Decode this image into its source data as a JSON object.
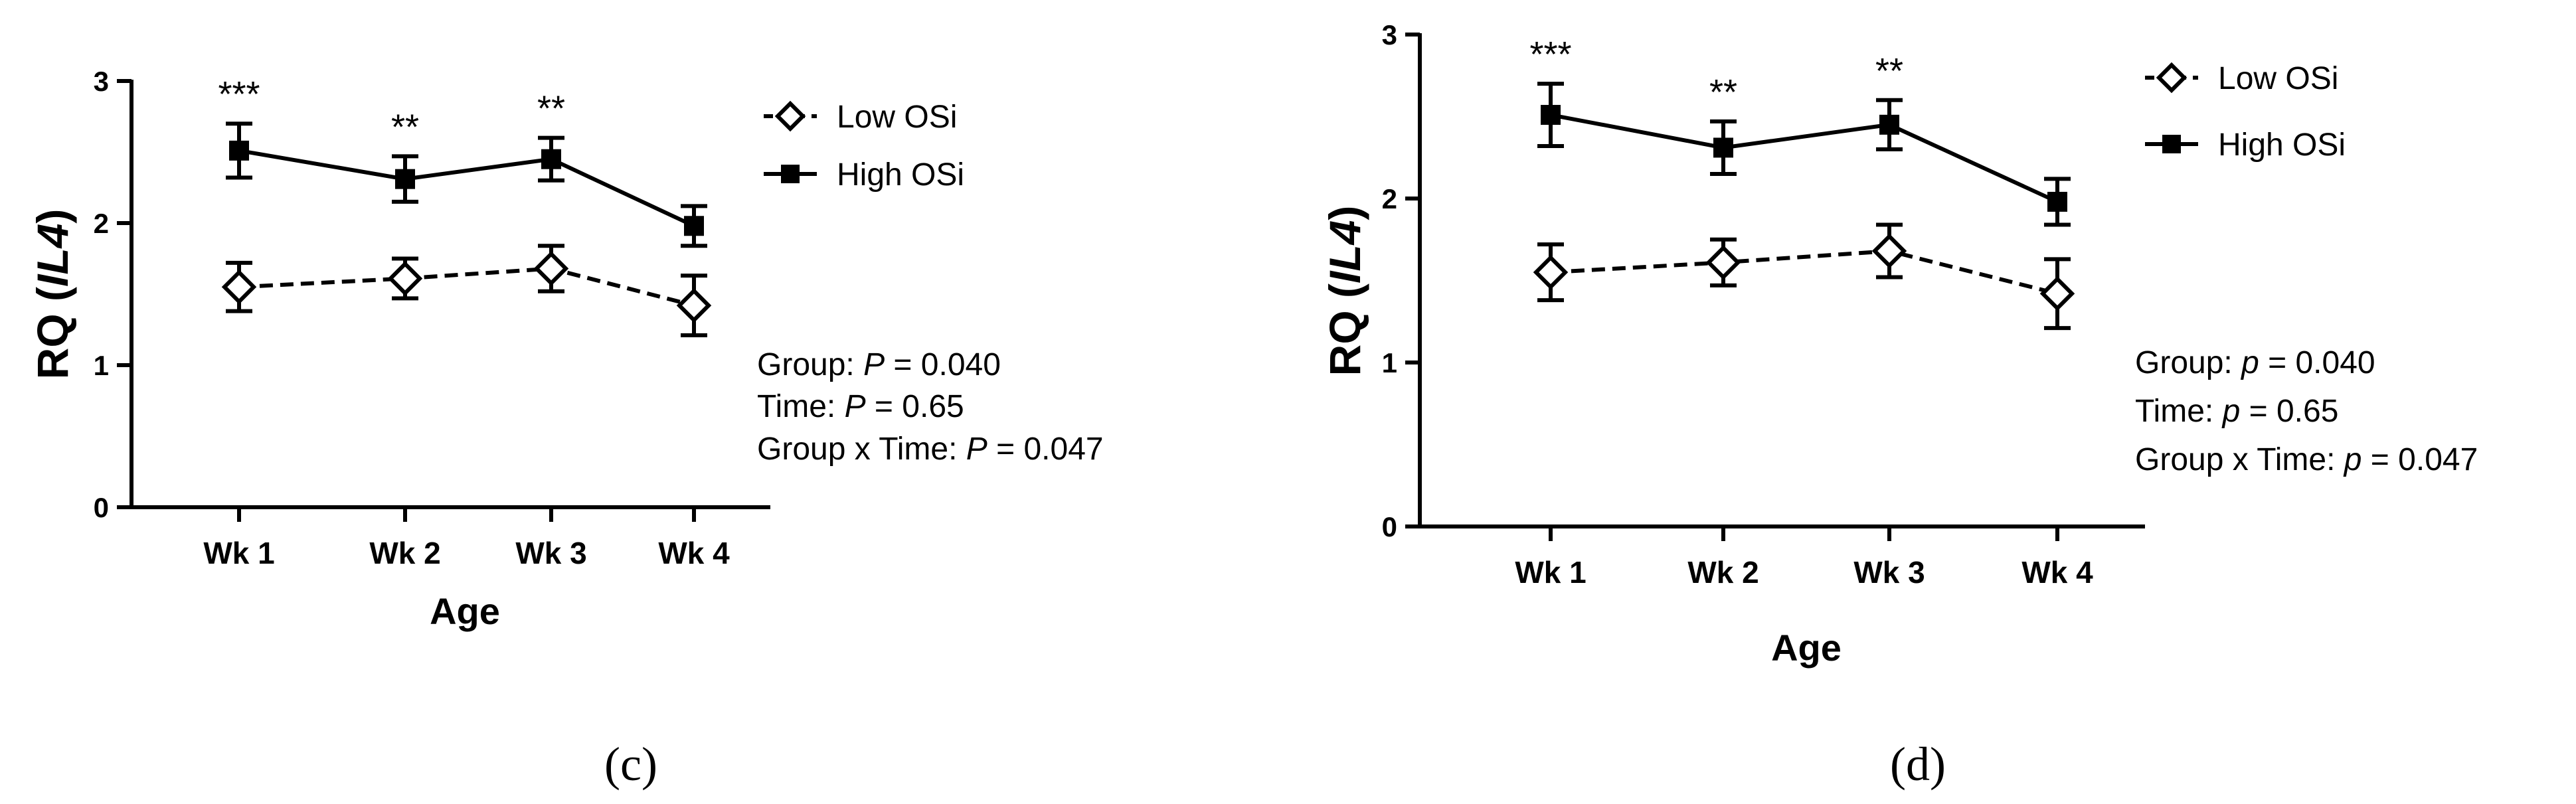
{
  "chart_data": [
    {
      "panel": "c",
      "type": "line",
      "categories": [
        "Wk 1",
        "Wk 2",
        "Wk 3",
        "Wk 4"
      ],
      "xlabel": "Age",
      "ylabel_prefix": "RQ (",
      "ylabel_gene": "IL4",
      "ylabel_suffix": ")",
      "ylim": [
        0,
        3
      ],
      "yticks": [
        "0",
        "1",
        "2",
        "3"
      ],
      "series": [
        {
          "name": "Low OSi",
          "marker": "diamond-open",
          "dash": "dashed",
          "values": [
            1.55,
            1.61,
            1.68,
            1.42
          ],
          "err": [
            0.17,
            0.14,
            0.16,
            0.21
          ]
        },
        {
          "name": "High OSi",
          "marker": "square-filled",
          "dash": "solid",
          "values": [
            2.51,
            2.31,
            2.45,
            1.98
          ],
          "err": [
            0.19,
            0.16,
            0.15,
            0.14
          ]
        }
      ],
      "significance": [
        "***",
        "**",
        "**",
        ""
      ],
      "stats": [
        {
          "label": "Group: ",
          "p": "P",
          "value": " = 0.040"
        },
        {
          "label": "Time: ",
          "p": "P",
          "value": " = 0.65"
        },
        {
          "label": "Group x Time: ",
          "p": "P",
          "value": " = 0.047"
        }
      ],
      "panel_label": "(c)"
    },
    {
      "panel": "d",
      "type": "line",
      "categories": [
        "Wk 1",
        "Wk 2",
        "Wk 3",
        "Wk 4"
      ],
      "xlabel": "Age",
      "ylabel_prefix": "RQ (",
      "ylabel_gene": "IL4",
      "ylabel_suffix": ")",
      "ylim": [
        0,
        3
      ],
      "yticks": [
        "0",
        "1",
        "2",
        "3"
      ],
      "series": [
        {
          "name": "Low OSi",
          "marker": "diamond-open",
          "dash": "dashed",
          "values": [
            1.55,
            1.61,
            1.68,
            1.42
          ],
          "err": [
            0.17,
            0.14,
            0.16,
            0.21
          ]
        },
        {
          "name": "High OSi",
          "marker": "square-filled",
          "dash": "solid",
          "values": [
            2.51,
            2.31,
            2.45,
            1.98
          ],
          "err": [
            0.19,
            0.16,
            0.15,
            0.14
          ]
        }
      ],
      "significance": [
        "***",
        "**",
        "**",
        ""
      ],
      "stats": [
        {
          "label": "Group: ",
          "p": "p",
          "value": " = 0.040"
        },
        {
          "label": "Time: ",
          "p": "p",
          "value": " = 0.65"
        },
        {
          "label": "Group x Time: ",
          "p": "p",
          "value": " = 0.047"
        }
      ],
      "panel_label": "(d)"
    }
  ]
}
